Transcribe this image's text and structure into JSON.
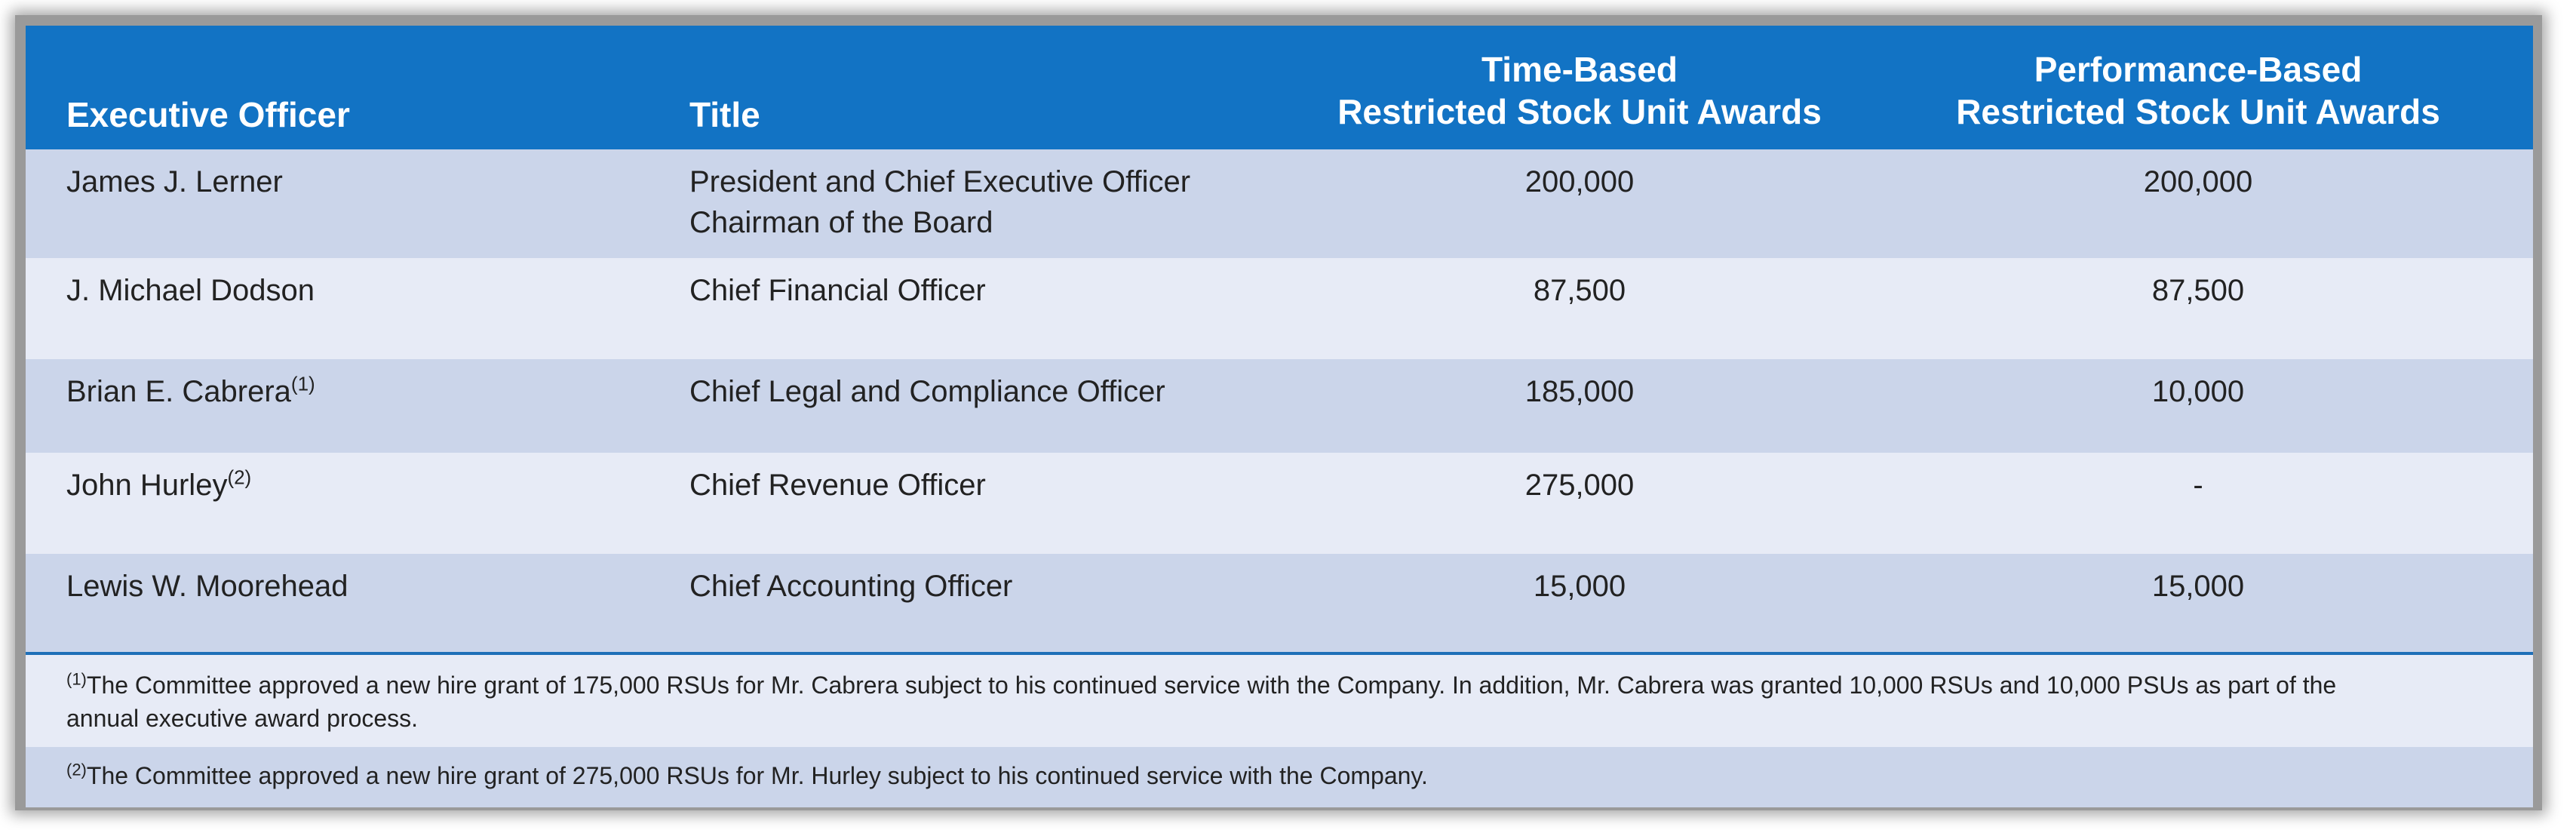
{
  "header": {
    "executive_officer": "Executive Officer",
    "title": "Title",
    "time_based_line1": "Time-Based",
    "time_based_line2": "Restricted Stock Unit Awards",
    "performance_based_line1": "Performance-Based",
    "performance_based_line2": "Restricted Stock Unit Awards"
  },
  "rows": [
    {
      "name": "James J. Lerner",
      "note": "",
      "title_line1": "President and Chief Executive Officer",
      "title_line2": "Chairman of the Board",
      "time_based": "200,000",
      "performance_based": "200,000"
    },
    {
      "name": "J. Michael Dodson",
      "note": "",
      "title_line1": "Chief Financial Officer",
      "title_line2": "",
      "time_based": "87,500",
      "performance_based": "87,500"
    },
    {
      "name": "Brian E. Cabrera",
      "note": "(1)",
      "title_line1": "Chief Legal and Compliance Officer",
      "title_line2": "",
      "time_based": "185,000",
      "performance_based": "10,000"
    },
    {
      "name": "John Hurley",
      "note": "(2)",
      "title_line1": "Chief Revenue Officer",
      "title_line2": "",
      "time_based": "275,000",
      "performance_based": "-"
    },
    {
      "name": "Lewis W. Moorehead",
      "note": "",
      "title_line1": "Chief Accounting Officer",
      "title_line2": "",
      "time_based": "15,000",
      "performance_based": "15,000"
    }
  ],
  "footnotes": [
    {
      "marker": "(1)",
      "line1": "The Committee approved a new hire grant of 175,000 RSUs for Mr. Cabrera subject to his continued service with the Company.  In addition, Mr. Cabrera was granted 10,000 RSUs and 10,000 PSUs as part of the",
      "line2": "annual executive award process."
    },
    {
      "marker": "(2)",
      "line1": "The Committee approved a new hire grant of 275,000 RSUs for Mr. Hurley subject to his continued service with the Company.",
      "line2": ""
    }
  ]
}
